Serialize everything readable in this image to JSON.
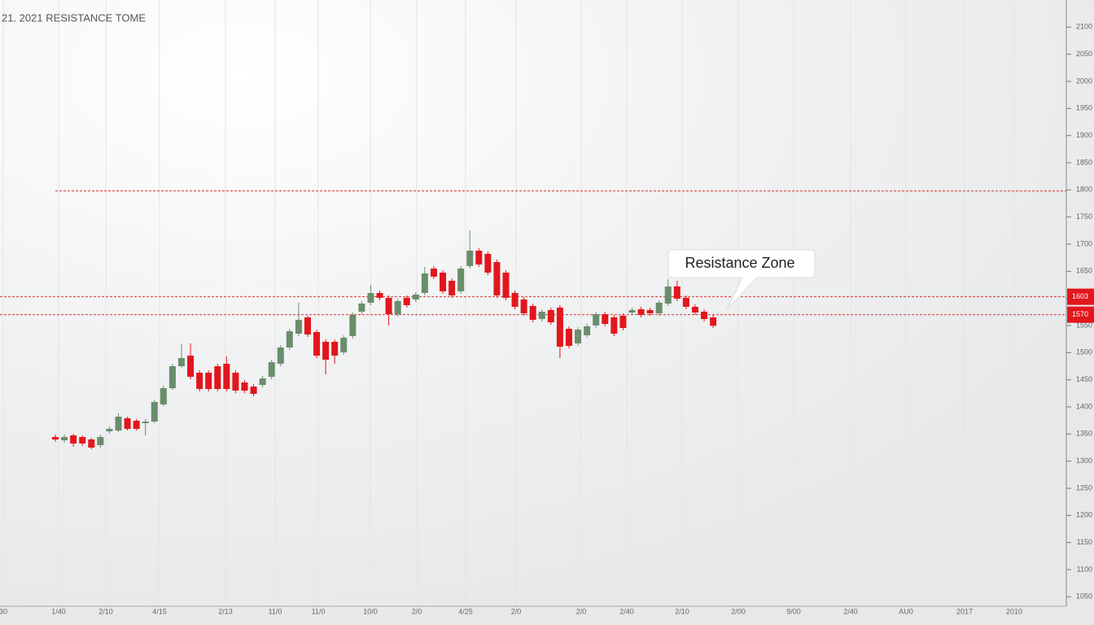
{
  "chart_data": {
    "type": "candlestick",
    "title": "21. 2021 RESISTANCE TOME",
    "annotation": "Resistance Zone",
    "up_color": "#6a8d6c",
    "down_color": "#e3161d",
    "level_color": "#d9342f",
    "resistance_levels": [
      1798,
      1603,
      1570
    ],
    "ylim": [
      1025,
      2150
    ],
    "yticks": [
      2100,
      2050,
      2000,
      1950,
      1900,
      1850,
      1800,
      1750,
      1700,
      1650,
      1600,
      1550,
      1500,
      1450,
      1400,
      1350,
      1300,
      1250,
      1200,
      1150,
      1100,
      1050
    ],
    "x_labels": [
      "30",
      "1/40",
      "2/10",
      "4/15",
      "2/13",
      "11/0",
      "11/0",
      "10/0",
      "2/0",
      "4/25",
      "2/0",
      "2/0",
      "2/40",
      "2/10",
      "2/00",
      "9/00",
      "2/40",
      "AU0",
      "2017",
      "2010"
    ],
    "open": [
      1344.5,
      1338.5,
      1347.5,
      1344.5,
      1340,
      1329.5,
      1355,
      1356.5,
      1379,
      1374.5,
      1370,
      1373,
      1404.5,
      1434.5,
      1475,
      1494.5,
      1463,
      1463,
      1475,
      1479.5,
      1463,
      1445,
      1437.5,
      1440.5,
      1455.5,
      1479.5,
      1509.5,
      1535,
      1565,
      1538,
      1520,
      1520,
      1500.5,
      1530.5,
      1575.5,
      1592,
      1610,
      1601,
      1571,
      1601,
      1598,
      1610,
      1655,
      1647.5,
      1632.5,
      1613,
      1659.5,
      1688,
      1682,
      1667,
      1647.5,
      1610,
      1598,
      1586,
      1562,
      1578.5,
      1583,
      1544,
      1517,
      1532,
      1550,
      1571,
      1565,
      1568,
      1574,
      1580,
      1578.5,
      1572.5,
      1590.5,
      1622,
      1601,
      1584.5,
      1575.5,
      1565
    ],
    "high": [
      1349,
      1349,
      1350.5,
      1347.5,
      1343,
      1349,
      1364,
      1388,
      1382,
      1377.5,
      1377.5,
      1413.5,
      1439,
      1479.5,
      1515.5,
      1517,
      1467.5,
      1467.5,
      1479.5,
      1493,
      1467.5,
      1449.5,
      1442,
      1457,
      1487,
      1514,
      1544,
      1592,
      1568,
      1542.5,
      1524.5,
      1524.5,
      1532,
      1574,
      1595,
      1625,
      1614.5,
      1605.5,
      1599.5,
      1605.5,
      1611.5,
      1658,
      1659.5,
      1652,
      1637,
      1659.5,
      1725.5,
      1692.5,
      1686.5,
      1671.5,
      1652,
      1614.5,
      1602.5,
      1590.5,
      1580,
      1583,
      1587.5,
      1548.5,
      1547,
      1553,
      1575.5,
      1575.5,
      1569.5,
      1572.5,
      1583,
      1584.5,
      1583,
      1596.5,
      1635.5,
      1632.5,
      1605.5,
      1589,
      1580,
      1569.5
    ],
    "low": [
      1335.5,
      1334,
      1326.5,
      1328,
      1322,
      1325,
      1350.5,
      1353.5,
      1356.5,
      1356.5,
      1347.5,
      1370,
      1401.5,
      1431.5,
      1472,
      1451,
      1428.5,
      1428.5,
      1428.5,
      1428.5,
      1425.5,
      1425.5,
      1419.5,
      1436,
      1451,
      1475,
      1505,
      1530.5,
      1529,
      1490,
      1460,
      1479.5,
      1496,
      1526,
      1571,
      1587.5,
      1596.5,
      1550,
      1566.5,
      1583,
      1593.5,
      1605.5,
      1635.5,
      1608.5,
      1601,
      1608.5,
      1655,
      1658,
      1643,
      1601,
      1596.5,
      1580,
      1568,
      1556,
      1557.5,
      1551.5,
      1490,
      1508,
      1512.5,
      1527.5,
      1545.5,
      1548.5,
      1530.5,
      1541,
      1569.5,
      1565,
      1568,
      1568,
      1586,
      1595,
      1580,
      1569.5,
      1557.5,
      1545.5
    ],
    "close": [
      1340,
      1344.5,
      1332.5,
      1332.5,
      1325,
      1344.5,
      1359.5,
      1382,
      1359.5,
      1359.5,
      1373,
      1409,
      1434.5,
      1475,
      1490,
      1455.5,
      1433,
      1433,
      1433,
      1433,
      1430,
      1430,
      1424,
      1452.5,
      1482.5,
      1509.5,
      1539.5,
      1560.5,
      1533.5,
      1494.5,
      1487,
      1494.5,
      1527.5,
      1569.5,
      1590.5,
      1610,
      1601,
      1571,
      1595,
      1587.5,
      1607,
      1646,
      1640,
      1613,
      1605.5,
      1655,
      1688,
      1662.5,
      1647.5,
      1605.5,
      1601,
      1584.5,
      1572.5,
      1560.5,
      1575.5,
      1556,
      1511,
      1512.5,
      1542.5,
      1548.5,
      1571,
      1553,
      1535,
      1545.5,
      1578.5,
      1569.5,
      1572.5,
      1592,
      1622,
      1599.5,
      1584.5,
      1574,
      1562,
      1549.5
    ]
  }
}
